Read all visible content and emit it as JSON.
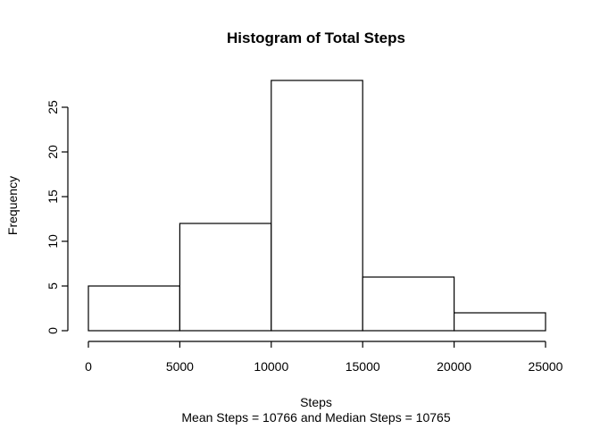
{
  "chart_data": {
    "type": "bar",
    "title": "Histogram of Total Steps",
    "xlabel": "Steps",
    "ylabel": "Frequency",
    "subtitle": "Mean Steps =  10766 and Median Steps =  10765",
    "bins": [
      {
        "start": 0,
        "end": 5000,
        "count": 5
      },
      {
        "start": 5000,
        "end": 10000,
        "count": 12
      },
      {
        "start": 10000,
        "end": 15000,
        "count": 28
      },
      {
        "start": 15000,
        "end": 20000,
        "count": 6
      },
      {
        "start": 20000,
        "end": 25000,
        "count": 2
      }
    ],
    "xlim": [
      0,
      25000
    ],
    "ylim": [
      0,
      28
    ],
    "x_ticks": [
      "0",
      "5000",
      "10000",
      "15000",
      "20000",
      "25000"
    ],
    "y_ticks": [
      "0",
      "5",
      "10",
      "15",
      "20",
      "25"
    ],
    "bar_fill": "#ffffff",
    "bar_stroke": "#000000",
    "grid": false,
    "legend": "none"
  }
}
